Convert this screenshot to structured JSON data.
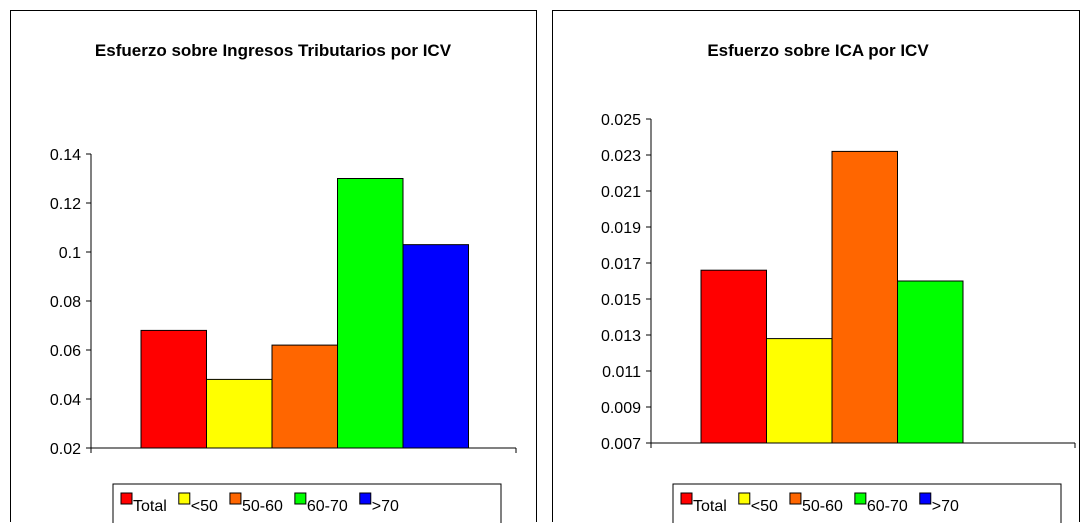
{
  "chart_data": [
    {
      "type": "bar",
      "title": "Esfuerzo sobre Ingresos Tributarios por ICV",
      "ylim": [
        0.02,
        0.14
      ],
      "yticks": [
        0.02,
        0.04,
        0.06,
        0.08,
        0.1,
        0.12,
        0.14
      ],
      "series": [
        {
          "name": "Total",
          "color": "#ff0000",
          "values": [
            0.068
          ]
        },
        {
          "name": "<50",
          "color": "#ffff00",
          "values": [
            0.048
          ]
        },
        {
          "name": "50-60",
          "color": "#ff6600",
          "values": [
            0.062
          ]
        },
        {
          "name": "60-70",
          "color": "#00ff00",
          "values": [
            0.13
          ]
        },
        {
          "name": ">70",
          "color": "#0000ff",
          "values": [
            0.103
          ]
        }
      ]
    },
    {
      "type": "bar",
      "title": "Esfuerzo sobre ICA por ICV",
      "ylim": [
        0.007,
        0.025
      ],
      "yticks": [
        0.007,
        0.009,
        0.011,
        0.013,
        0.015,
        0.017,
        0.019,
        0.021,
        0.023,
        0.025
      ],
      "series": [
        {
          "name": "Total",
          "color": "#ff0000",
          "values": [
            0.0166
          ]
        },
        {
          "name": "<50",
          "color": "#ffff00",
          "values": [
            0.0128
          ]
        },
        {
          "name": "50-60",
          "color": "#ff6600",
          "values": [
            0.0232
          ]
        },
        {
          "name": "60-70",
          "color": "#00ff00",
          "values": [
            0.016
          ]
        },
        {
          "name": ">70",
          "color": "#0000ff",
          "values": [
            null
          ]
        }
      ]
    }
  ]
}
